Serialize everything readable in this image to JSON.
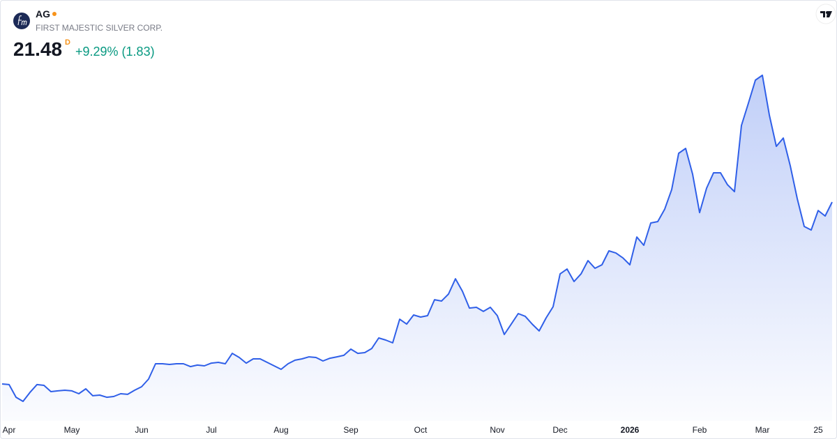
{
  "header": {
    "symbol": "AG",
    "name": "FIRST MAJESTIC SILVER CORP.",
    "price": "21.48",
    "interval": "D",
    "change": "+9.29% (1.83)"
  },
  "chart_data": {
    "type": "area",
    "color": "#2f5fe8",
    "categories": [
      null,
      "Apr",
      null,
      null,
      null,
      null,
      null,
      null,
      null,
      null,
      "May",
      null,
      null,
      null,
      null,
      null,
      null,
      null,
      null,
      null,
      "Jun",
      null,
      null,
      null,
      null,
      null,
      null,
      null,
      null,
      null,
      "Jul",
      null,
      null,
      null,
      null,
      null,
      null,
      null,
      null,
      null,
      "Aug",
      null,
      null,
      null,
      null,
      null,
      null,
      null,
      null,
      null,
      "Sep",
      null,
      null,
      null,
      null,
      null,
      null,
      null,
      null,
      null,
      "Oct",
      null,
      null,
      null,
      null,
      null,
      null,
      null,
      null,
      null,
      null,
      "Nov",
      null,
      null,
      null,
      null,
      null,
      null,
      null,
      null,
      "Dec",
      null,
      null,
      null,
      null,
      null,
      null,
      null,
      null,
      null,
      "2026",
      null,
      null,
      null,
      null,
      null,
      null,
      null,
      null,
      null,
      "Feb",
      null,
      null,
      null,
      null,
      null,
      null,
      null,
      null,
      "Mar",
      null,
      null,
      null,
      null,
      null,
      null,
      null,
      "25",
      null,
      null
    ],
    "values": [
      6.94,
      6.89,
      5.88,
      5.55,
      6.27,
      6.89,
      6.83,
      6.33,
      6.39,
      6.44,
      6.39,
      6.16,
      6.55,
      6.0,
      6.05,
      5.88,
      5.94,
      6.16,
      6.11,
      6.44,
      6.72,
      7.33,
      8.56,
      8.56,
      8.5,
      8.56,
      8.56,
      8.33,
      8.45,
      8.39,
      8.61,
      8.67,
      8.56,
      9.39,
      9.06,
      8.61,
      8.95,
      8.95,
      8.67,
      8.39,
      8.11,
      8.56,
      8.84,
      8.95,
      9.11,
      9.06,
      8.78,
      9.0,
      9.11,
      9.23,
      9.73,
      9.39,
      9.45,
      9.78,
      10.62,
      10.45,
      10.23,
      12.12,
      11.73,
      12.46,
      12.29,
      12.4,
      13.68,
      13.57,
      14.13,
      15.35,
      14.35,
      13.01,
      13.07,
      12.74,
      13.07,
      12.4,
      10.9,
      11.73,
      12.57,
      12.35,
      11.73,
      11.18,
      12.23,
      13.12,
      15.74,
      16.13,
      15.13,
      15.74,
      16.8,
      16.19,
      16.47,
      17.58,
      17.41,
      17.02,
      16.47,
      18.69,
      18.03,
      19.81,
      19.92,
      20.92,
      22.48,
      25.38,
      25.77,
      23.71,
      20.64,
      22.59,
      23.82,
      23.82,
      22.87,
      22.32,
      27.61,
      29.39,
      31.23,
      31.62,
      28.44,
      25.94,
      26.6,
      24.38,
      21.76,
      19.53,
      19.25,
      20.81,
      20.37,
      21.48
    ]
  }
}
